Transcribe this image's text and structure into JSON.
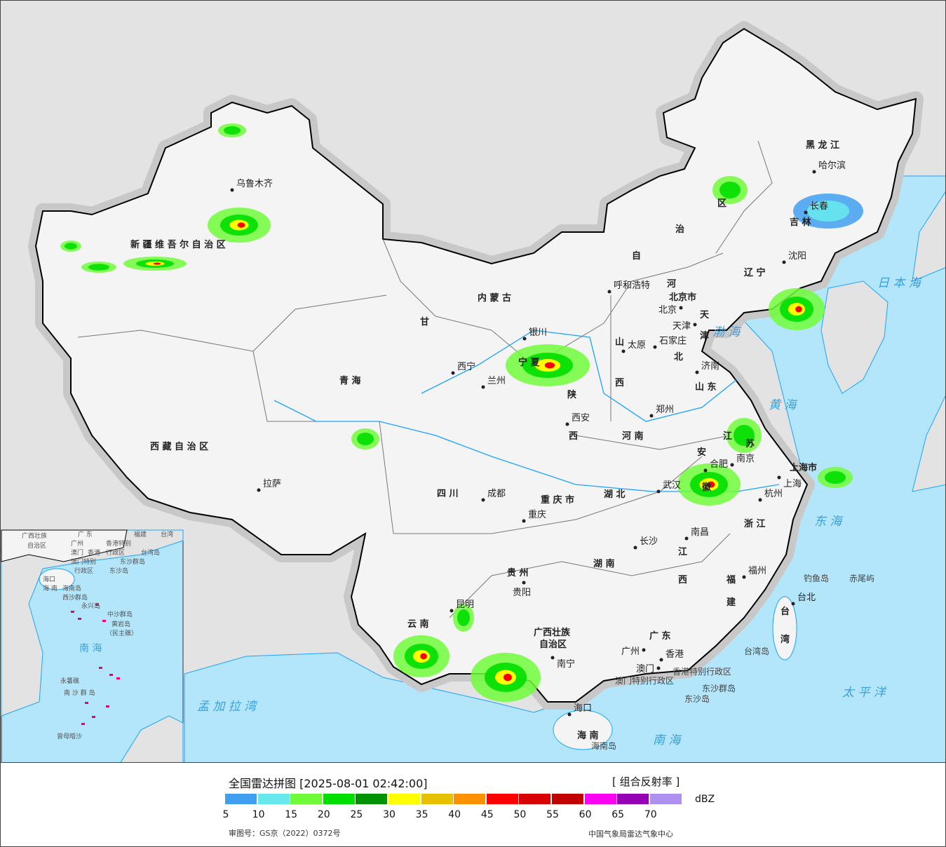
{
  "map": {
    "provinces": [
      "新 疆 维 吾 尔 自 治 区",
      "西 藏 自 治 区",
      "青    海",
      "甘",
      "内     蒙     古",
      "自",
      "治",
      "区",
      "黑  龙  江",
      "吉  林",
      "辽  宁",
      "河",
      "北",
      "山",
      "西",
      "山  东",
      "河  南",
      "陕",
      "西",
      "宁 夏",
      "四    川",
      "重 庆 市",
      "湖    北",
      "湖    南",
      "贵    州",
      "云    南",
      "广西壮族",
      "自治区",
      "广    东",
      "江",
      "西",
      "浙  江",
      "福",
      "建",
      "安",
      "徽",
      "江",
      "苏",
      "上海市",
      "海    南",
      "台",
      "湾",
      "天",
      "津",
      "北京市"
    ],
    "cities": [
      "乌鲁木齐",
      "拉萨",
      "西宁",
      "兰州",
      "银川",
      "呼和浩特",
      "北京",
      "天津",
      "石家庄",
      "太原",
      "济南",
      "郑州",
      "西安",
      "成都",
      "重庆",
      "武汉",
      "合肥",
      "南京",
      "上海",
      "杭州",
      "长沙",
      "南昌",
      "福州",
      "贵阳",
      "昆明",
      "南宁",
      "广州",
      "澳门",
      "香港",
      "海口",
      "台北",
      "哈尔滨",
      "长春",
      "沈阳"
    ],
    "seas": [
      "日 本 海",
      "渤 海",
      "黄  海",
      "东  海",
      "太  平  洋",
      "南    海",
      "孟 加 拉 湾"
    ],
    "islands": [
      "钓鱼岛",
      "赤尾屿",
      "台湾岛",
      "东沙群岛",
      "东沙岛",
      "海南岛",
      "香港特别行政区",
      "澳门特别行政区"
    ],
    "inset": {
      "labels": [
        "广西壮族",
        "自治区",
        "广 东",
        "广州",
        "澳门",
        "香港",
        "香港特别",
        "行政区",
        "澳门特别",
        "行政区",
        "台湾岛",
        "东沙群岛",
        "东沙岛",
        "海口",
        "海 南",
        "海南岛",
        "西沙群岛",
        "永兴岛",
        "中沙群岛",
        "黄岩岛",
        "（民主礁）",
        "南     海",
        "永暑礁",
        "南 沙 群 岛",
        "曾母暗沙",
        "台湾",
        "福建"
      ]
    },
    "colors": {
      "land": "#f4f4f4",
      "foreign": "#e3e3e3",
      "sea": "#b3e6fb",
      "river": "#1aa3ff",
      "border": "#000000",
      "island": "#e8006f"
    }
  },
  "footer": {
    "title": "全国雷达拼图 [2025-08-01 02:42:00]",
    "product": "[ 组合反射率 ]",
    "unit": "dBZ",
    "approval": "审图号：GS京（2022）0372号",
    "credit": "中国气象局雷达气象中心",
    "scale": [
      {
        "value": "5",
        "color": "#3f9ff0"
      },
      {
        "value": "10",
        "color": "#66e8ec"
      },
      {
        "value": "15",
        "color": "#70fb3a"
      },
      {
        "value": "20",
        "color": "#00de00"
      },
      {
        "value": "25",
        "color": "#009200"
      },
      {
        "value": "30",
        "color": "#ffff00"
      },
      {
        "value": "35",
        "color": "#e7c100"
      },
      {
        "value": "40",
        "color": "#ff9100"
      },
      {
        "value": "45",
        "color": "#ff0000"
      },
      {
        "value": "50",
        "color": "#d80000"
      },
      {
        "value": "55",
        "color": "#c10000"
      },
      {
        "value": "60",
        "color": "#ff00f0"
      },
      {
        "value": "65",
        "color": "#9600b4"
      },
      {
        "value": "70",
        "color": "#ad90f0"
      }
    ]
  }
}
